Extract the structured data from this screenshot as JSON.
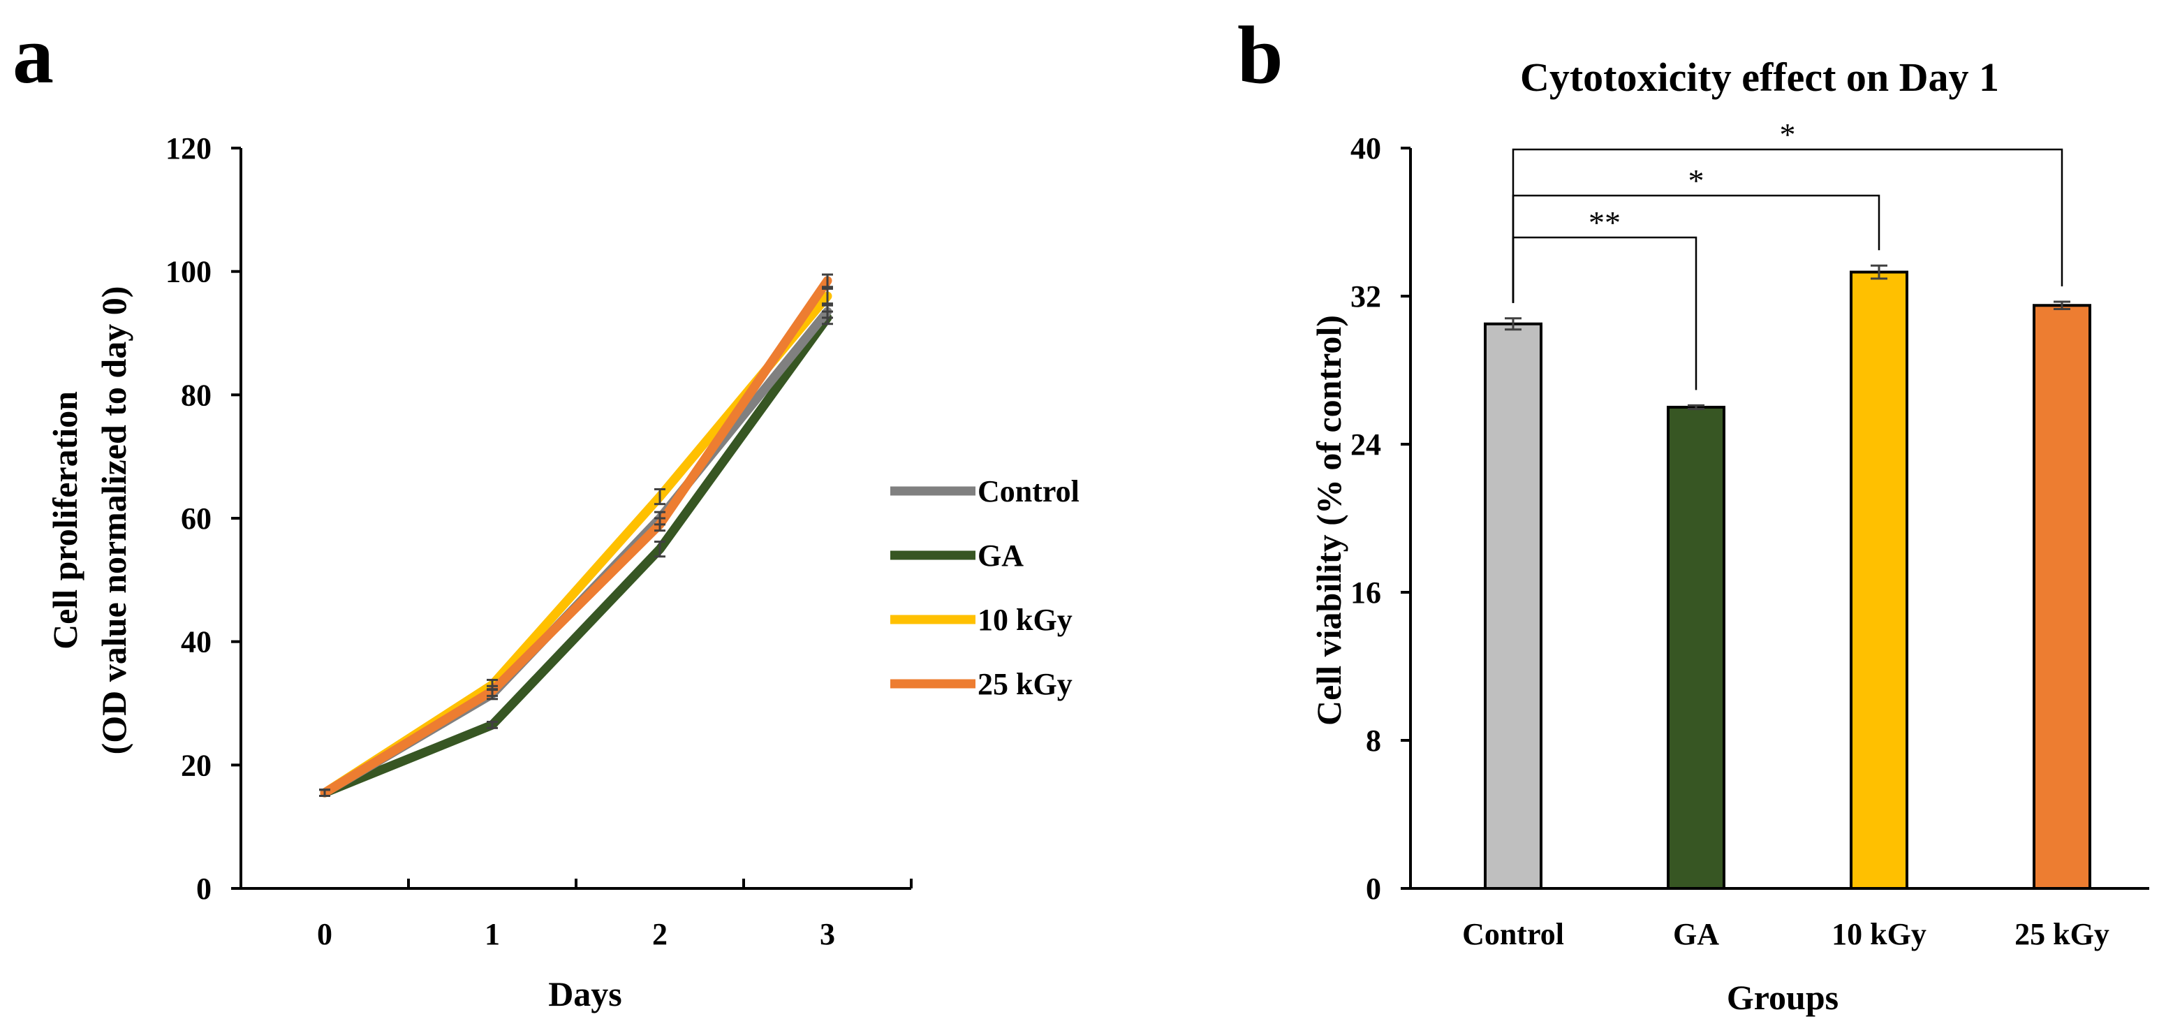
{
  "chart_data": [
    {
      "panel": "a",
      "type": "line",
      "title": "",
      "xlabel": "Days",
      "ylabel": [
        "Cell proliferation",
        "(OD value normalized to day 0)"
      ],
      "x": [
        0,
        1,
        2,
        3
      ],
      "x_tick_labels": [
        "0",
        "1",
        "2",
        "3"
      ],
      "ylim": [
        0,
        120
      ],
      "y_ticks": [
        0,
        20,
        40,
        60,
        80,
        100,
        120
      ],
      "y_tick_labels": [
        "0",
        "20",
        "40",
        "60",
        "80",
        "100",
        "120"
      ],
      "series": [
        {
          "name": "Control",
          "color": "#808080",
          "values": [
            15.5,
            31.5,
            60,
            93.5
          ],
          "errors": [
            0.5,
            0.8,
            1.0,
            1.0
          ]
        },
        {
          "name": "GA",
          "color": "#375623",
          "values": [
            15.5,
            26.5,
            55,
            92.5
          ],
          "errors": [
            0.5,
            0.5,
            1.2,
            1.0
          ]
        },
        {
          "name": "10 kGy",
          "color": "#FFC000",
          "values": [
            15.5,
            33,
            63.5,
            96
          ],
          "errors": [
            0.5,
            0.8,
            1.2,
            1.2
          ]
        },
        {
          "name": "25 kGy",
          "color": "#ED7D31",
          "values": [
            15.5,
            32,
            59,
            98.5
          ],
          "errors": [
            0.5,
            0.8,
            1.0,
            1.0
          ]
        }
      ],
      "legend_position": "right"
    },
    {
      "panel": "b",
      "type": "bar",
      "title": "Cytotoxicity effect on Day 1",
      "xlabel": "Groups",
      "ylabel": "Cell viability (% of control)",
      "categories": [
        "Control",
        "GA",
        "10 kGy",
        "25 kGy"
      ],
      "values": [
        30.5,
        26,
        33.3,
        31.5
      ],
      "errors": [
        0.3,
        0.1,
        0.35,
        0.2
      ],
      "colors": [
        "#BFBFBF",
        "#375623",
        "#FFC000",
        "#ED7D31"
      ],
      "ylim": [
        0,
        40
      ],
      "y_ticks": [
        0,
        8,
        16,
        24,
        32,
        40
      ],
      "y_tick_labels": [
        "0",
        "8",
        "16",
        "24",
        "32",
        "40"
      ],
      "significance": [
        {
          "from": "Control",
          "to": "GA",
          "label": "**"
        },
        {
          "from": "Control",
          "to": "10 kGy",
          "label": "*"
        },
        {
          "from": "Control",
          "to": "25 kGy",
          "label": "*"
        }
      ]
    }
  ],
  "panel_labels": [
    "a",
    "b"
  ]
}
